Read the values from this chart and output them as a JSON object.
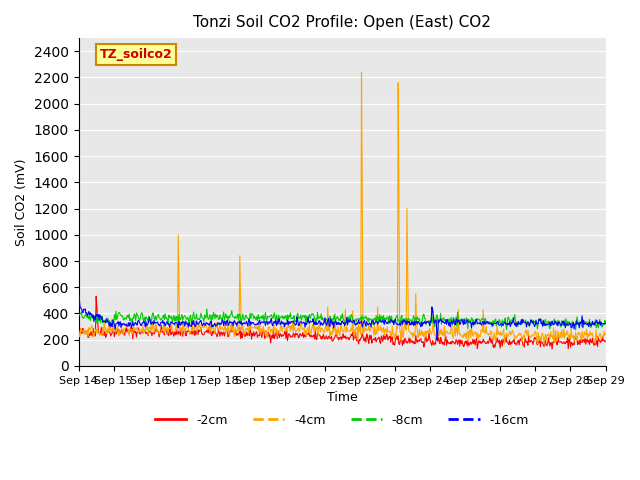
{
  "title": "Tonzi Soil CO2 Profile: Open (East) CO2",
  "ylabel": "Soil CO2 (mV)",
  "xlabel": "Time",
  "ylim": [
    0,
    2500
  ],
  "yticks": [
    0,
    200,
    400,
    600,
    800,
    1000,
    1200,
    1400,
    1600,
    1800,
    2000,
    2200,
    2400
  ],
  "x_labels": [
    "Sep 14",
    "Sep 15",
    "Sep 16",
    "Sep 17",
    "Sep 18",
    "Sep 19",
    "Sep 20",
    "Sep 21",
    "Sep 22",
    "Sep 23",
    "Sep 24",
    "Sep 25",
    "Sep 26",
    "Sep 27",
    "Sep 28",
    "Sep 29"
  ],
  "colors": {
    "2cm": "#ff0000",
    "4cm": "#ffa500",
    "8cm": "#00cc00",
    "16cm": "#0000ff"
  },
  "legend_labels": [
    "-2cm",
    "-4cm",
    "-8cm",
    "-16cm"
  ],
  "background_color": "#e8e8e8",
  "watermark_text": "TZ_soilco2",
  "watermark_bg": "#ffff99",
  "watermark_border": "#cc8800"
}
